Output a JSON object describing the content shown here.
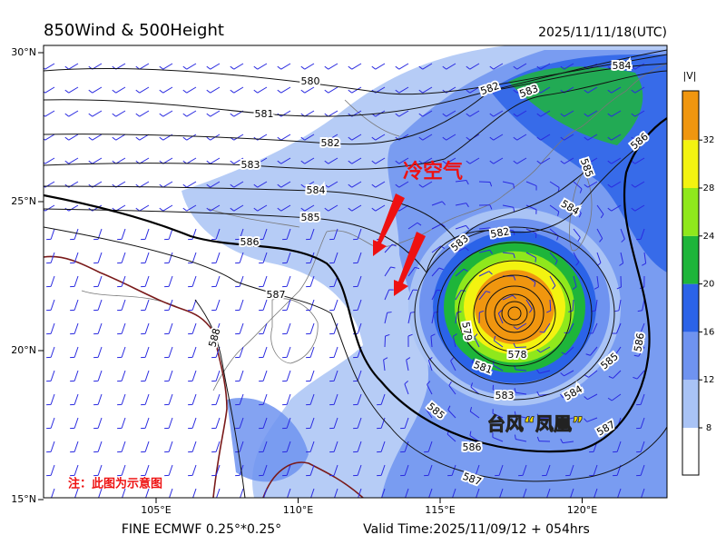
{
  "header": {
    "title": "850Wind & 500Height",
    "time": "2025/11/11/18(UTC)"
  },
  "axes": {
    "lon_ticks": [
      {
        "value": 105,
        "label": "105°E"
      },
      {
        "value": 110,
        "label": "110°E"
      },
      {
        "value": 115,
        "label": "115°E"
      },
      {
        "value": 120,
        "label": "120°E"
      }
    ],
    "lat_ticks": [
      {
        "value": 30,
        "label": "30°N"
      },
      {
        "value": 25,
        "label": "25°N"
      },
      {
        "value": 20,
        "label": "20°N"
      },
      {
        "value": 15,
        "label": "15°N"
      }
    ]
  },
  "colorbar": {
    "label": "|V|",
    "ticks": [
      8,
      12,
      16,
      20,
      24,
      28,
      32
    ],
    "colors": [
      "#ffffff",
      "#a9c3f5",
      "#6f93f0",
      "#2b63e8",
      "#1eb53a",
      "#8fe81c",
      "#f3f310",
      "#f0960f"
    ]
  },
  "contour_labels": [
    "580",
    "581",
    "582",
    "583",
    "584",
    "585",
    "586",
    "587",
    "588",
    "583",
    "582",
    "579",
    "578",
    "581",
    "583",
    "584",
    "585",
    "585",
    "586",
    "586",
    "587",
    "587",
    "584",
    "585",
    "586",
    "582",
    "583",
    "584"
  ],
  "annotations": {
    "cold_air": "冷空气",
    "typhoon": "台风“凤凰”",
    "note": "注：此图为示意图"
  },
  "footer": {
    "model": "FINE ECMWF 0.25°*0.25°",
    "valid": "Valid Time:2025/11/09/12 + 054hrs"
  }
}
